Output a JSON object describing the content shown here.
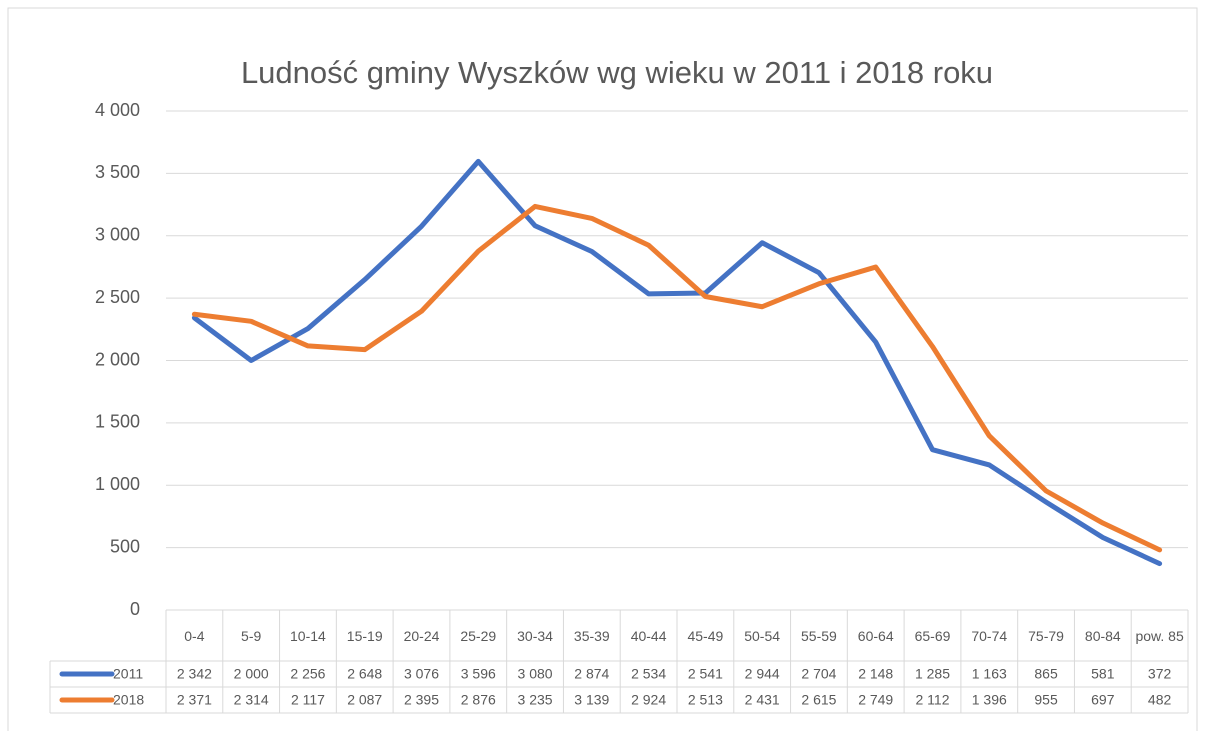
{
  "chart_data": {
    "type": "line",
    "title": "Ludność gminy Wyszków wg wieku w 2011 i 2018 roku",
    "categories": [
      "0-4",
      "5-9",
      "10-14",
      "15-19",
      "20-24",
      "25-29",
      "30-34",
      "35-39",
      "40-44",
      "45-49",
      "50-54",
      "55-59",
      "60-64",
      "65-69",
      "70-74",
      "75-79",
      "80-84",
      "pow. 85"
    ],
    "series": [
      {
        "name": "2011",
        "color": "#4472c4",
        "values": [
          2342,
          2000,
          2256,
          2648,
          3076,
          3596,
          3080,
          2874,
          2534,
          2541,
          2944,
          2704,
          2148,
          1285,
          1163,
          865,
          581,
          372
        ],
        "value_labels": [
          "2 342",
          "2 000",
          "2 256",
          "2 648",
          "3 076",
          "3 596",
          "3 080",
          "2 874",
          "2 534",
          "2 541",
          "2 944",
          "2 704",
          "2 148",
          "1 285",
          "1 163",
          "865",
          "581",
          "372"
        ]
      },
      {
        "name": "2018",
        "color": "#ed7d31",
        "values": [
          2371,
          2314,
          2117,
          2087,
          2395,
          2876,
          3235,
          3139,
          2924,
          2513,
          2431,
          2615,
          2749,
          2112,
          1396,
          955,
          697,
          482
        ],
        "value_labels": [
          "2 371",
          "2 314",
          "2 117",
          "2 087",
          "2 395",
          "2 876",
          "3 235",
          "3 139",
          "2 924",
          "2 513",
          "2 431",
          "2 615",
          "2 749",
          "2 112",
          "1 396",
          "955",
          "697",
          "482"
        ]
      }
    ],
    "ylim": [
      0,
      4000
    ],
    "yticks": [
      0,
      500,
      {
        "value": 1000,
        "label": "1 000"
      },
      {
        "value": 1500,
        "label": "1 500"
      },
      {
        "value": 2000,
        "label": "2 000"
      },
      {
        "value": 2500,
        "label": "2 500"
      },
      {
        "value": 3000,
        "label": "3 000"
      },
      {
        "value": 3500,
        "label": "3 500"
      },
      {
        "value": 4000,
        "label": "4 000"
      }
    ],
    "grid": true
  }
}
